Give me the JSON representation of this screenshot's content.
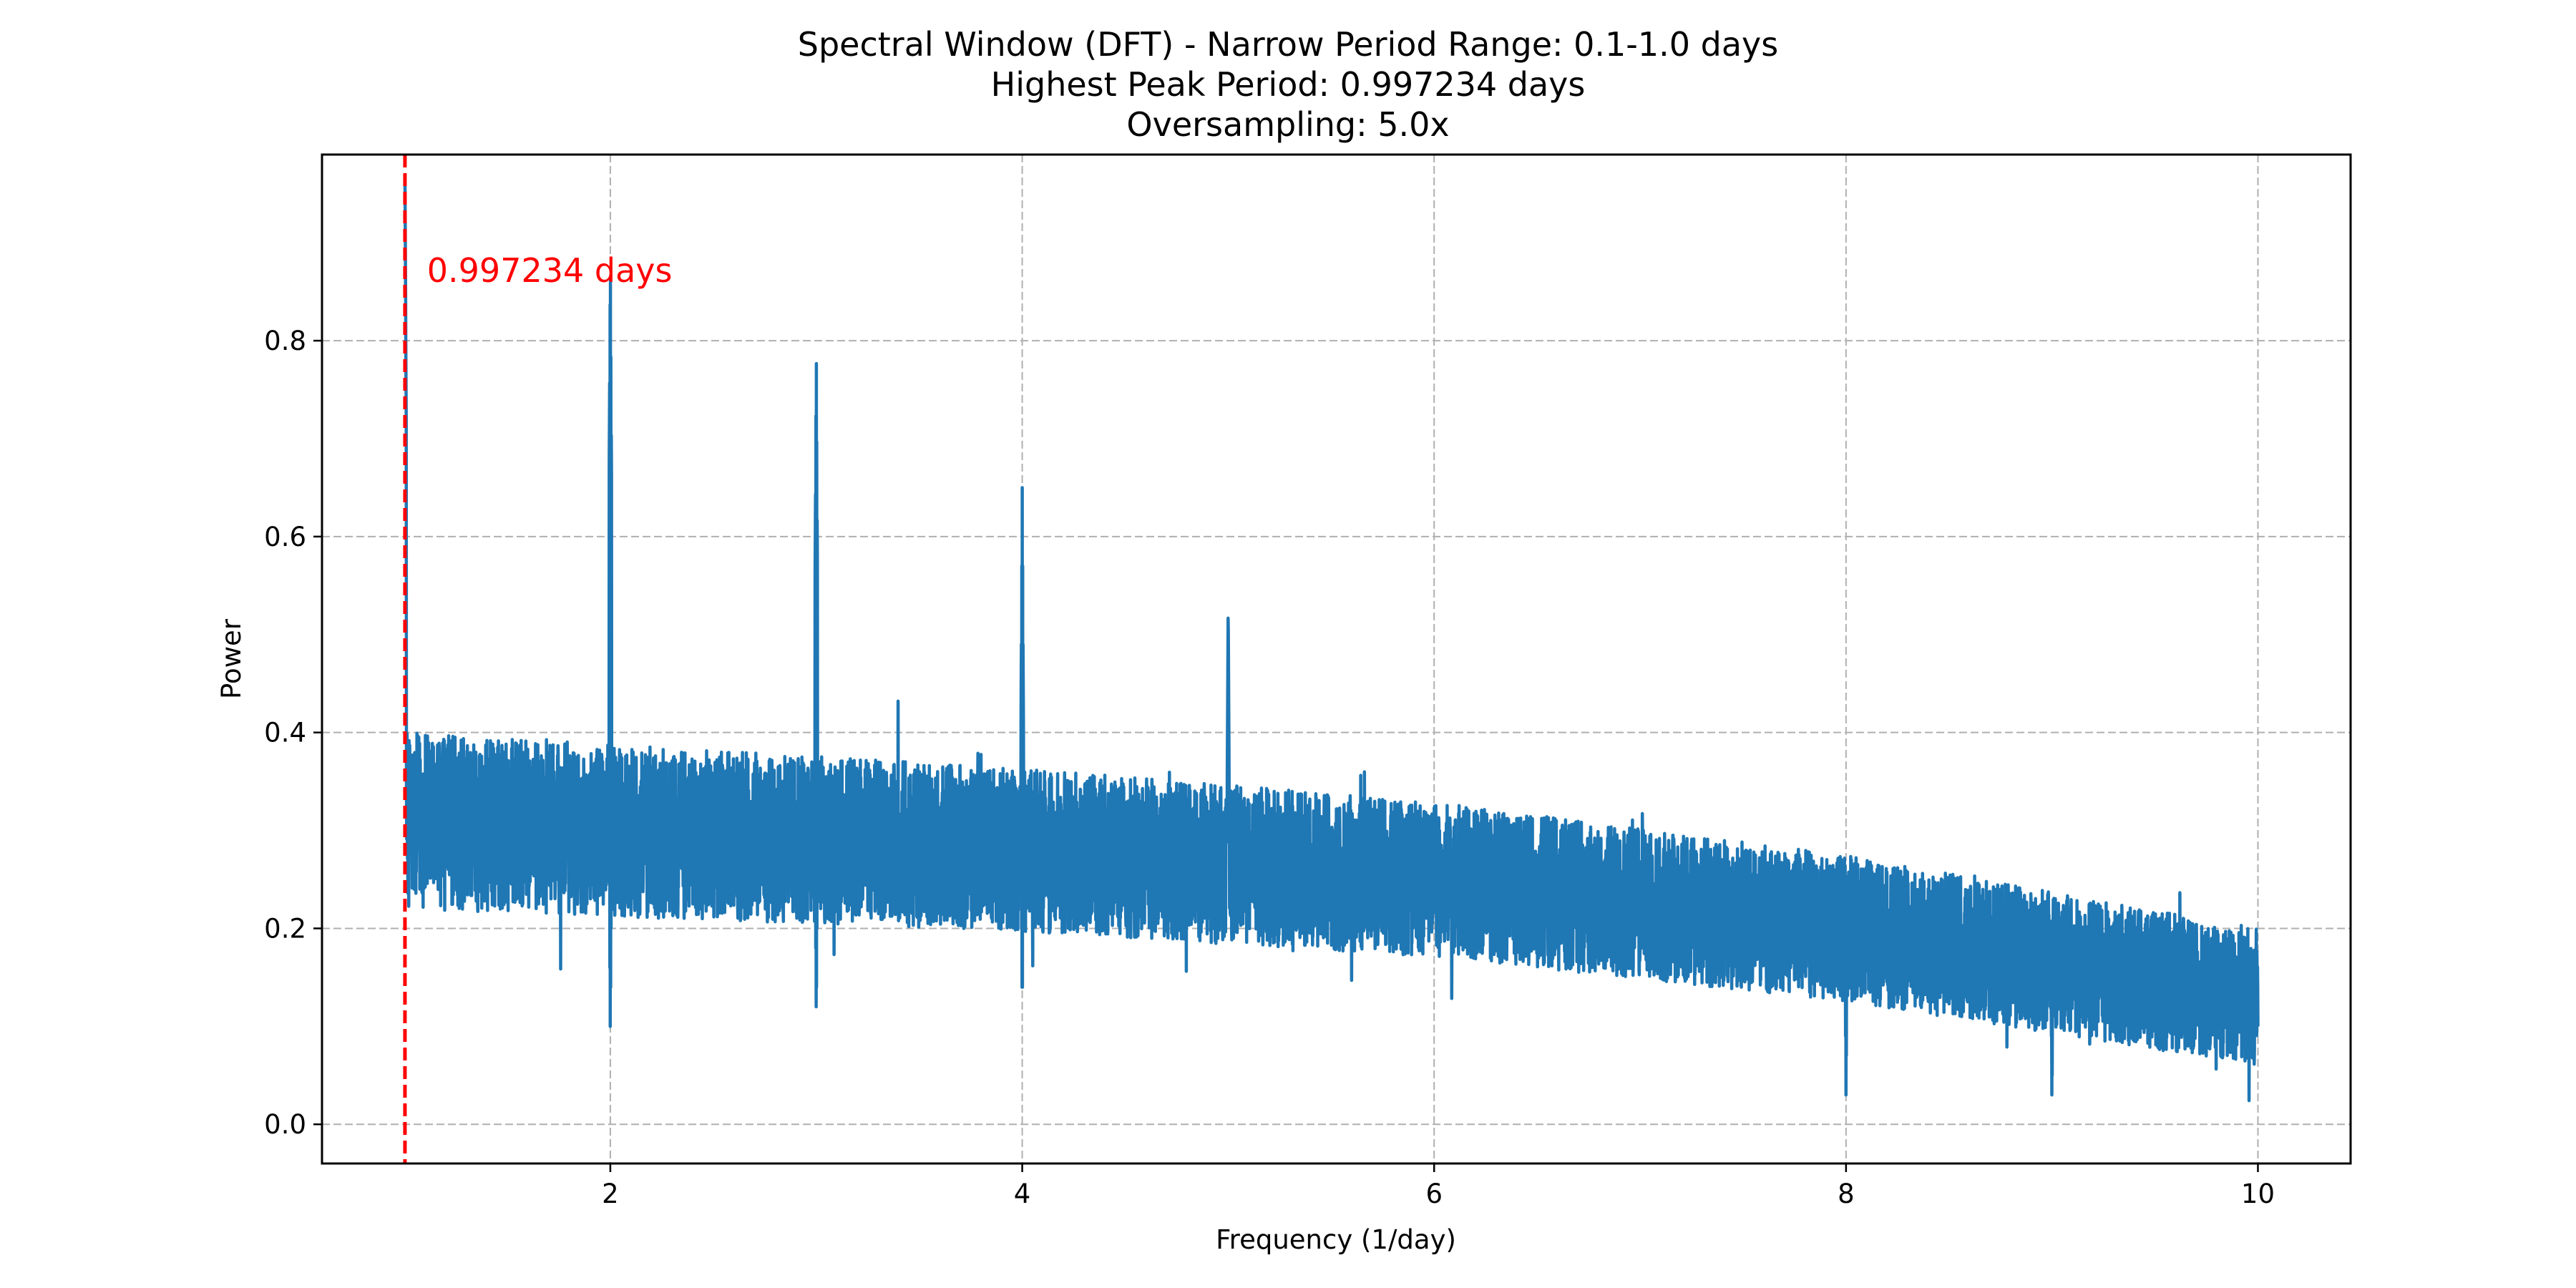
{
  "chart_data": {
    "type": "line",
    "title_lines": [
      "Spectral Window (DFT) - Narrow Period Range: 0.1-1.0 days",
      "Highest Peak Period: 0.997234 days",
      "Oversampling: 5.0x"
    ],
    "xlabel": "Frequency (1/day)",
    "ylabel": "Power",
    "xlim": [
      0.6,
      10.45
    ],
    "ylim": [
      -0.04,
      0.99
    ],
    "xticks": [
      2,
      4,
      6,
      8,
      10
    ],
    "xtick_labels": [
      "2",
      "4",
      "6",
      "8",
      "10"
    ],
    "yticks": [
      0.0,
      0.2,
      0.4,
      0.6,
      0.8
    ],
    "ytick_labels": [
      "0.0",
      "0.2",
      "0.4",
      "0.6",
      "0.8"
    ],
    "grid": true,
    "series": [
      {
        "color": "#1f77b4",
        "trend": {
          "x": [
            1.0,
            2.0,
            4.0,
            6.0,
            8.0,
            10.0
          ],
          "y": [
            0.31,
            0.3,
            0.28,
            0.25,
            0.2,
            0.13
          ]
        },
        "noise_halfwidth": [
          0.09,
          0.07
        ],
        "x_range": [
          1.003,
          10.0
        ],
        "peaks": [
          {
            "x": 1.003,
            "y": 0.96
          },
          {
            "x": 2.0,
            "y": 0.89
          },
          {
            "x": 3.0,
            "y": 0.79
          },
          {
            "x": 4.0,
            "y": 0.65
          },
          {
            "x": 5.0,
            "y": 0.53
          }
        ],
        "dips": [
          {
            "x": 2.0,
            "y": 0.09
          },
          {
            "x": 3.0,
            "y": 0.1
          },
          {
            "x": 4.0,
            "y": 0.11
          },
          {
            "x": 8.0,
            "y": 0.02
          },
          {
            "x": 9.0,
            "y": 0.01
          }
        ]
      }
    ],
    "marker_line": {
      "x": 1.00278,
      "color": "#ff0000",
      "style": "dashed"
    },
    "annotation": {
      "text": "0.997234 days",
      "x": 1.11,
      "y": 0.86,
      "color": "#ff0000"
    }
  }
}
